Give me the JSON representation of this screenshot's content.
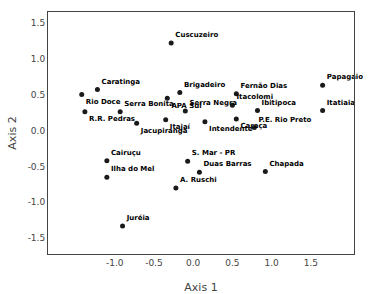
{
  "chart_data": {
    "type": "scatter",
    "labels": [
      "Cuscuzeiro",
      "Caratinga",
      "Rio Doce",
      "Brigadeiro",
      "APA Sul",
      "Fernão Dias",
      "Papagaio",
      "R.R. Pedras",
      "Serra Bonita",
      "Serra Negra",
      "Itacolomi",
      "Ibitipoca",
      "Itatiaia",
      "Itajaí",
      "Intendente",
      "Caraça",
      "Jacupiranga",
      "P.E. Rio Preto",
      "Cairuçu",
      "S. Mar - PR",
      "Duas Barras",
      "Chapada",
      "Ilha do Mel",
      "A. Ruschi",
      "Juréia"
    ],
    "x": [
      -0.28,
      -1.22,
      -1.42,
      -0.17,
      -0.33,
      0.55,
      1.65,
      -1.38,
      -0.93,
      -0.1,
      0.5,
      0.82,
      1.65,
      -0.35,
      0.15,
      0.55,
      -0.72,
      0.78,
      -1.1,
      -0.07,
      0.08,
      0.92,
      -1.1,
      -0.22,
      -0.9
    ],
    "values": [
      1.22,
      0.57,
      0.5,
      0.53,
      0.45,
      0.51,
      0.63,
      0.26,
      0.26,
      0.27,
      0.35,
      0.28,
      0.28,
      0.15,
      0.12,
      0.16,
      0.1,
      0.04,
      -0.42,
      -0.43,
      -0.58,
      -0.57,
      -0.65,
      -0.8,
      -1.33
    ],
    "color": "#1a1a1a",
    "xlabel": "Axis 1",
    "ylabel": "Axis 2",
    "xlim": [
      -1.85,
      2.05
    ],
    "ylim": [
      -1.72,
      1.65
    ],
    "xticks": [
      1.5,
      {
        "value": -1.0,
        "label": "-1.0"
      },
      -0.5,
      {
        "value": 0,
        "label": "0.0"
      },
      0.5,
      {
        "value": 1.0,
        "label": "1.0"
      },
      1.5
    ],
    "yticks": [
      -1.5,
      {
        "value": -1.0,
        "label": "-1.0"
      },
      -0.5,
      {
        "value": 0,
        "label": "0.0"
      },
      0.5,
      {
        "value": 1.0,
        "label": "1.0"
      },
      1.5
    ],
    "grid": false
  }
}
